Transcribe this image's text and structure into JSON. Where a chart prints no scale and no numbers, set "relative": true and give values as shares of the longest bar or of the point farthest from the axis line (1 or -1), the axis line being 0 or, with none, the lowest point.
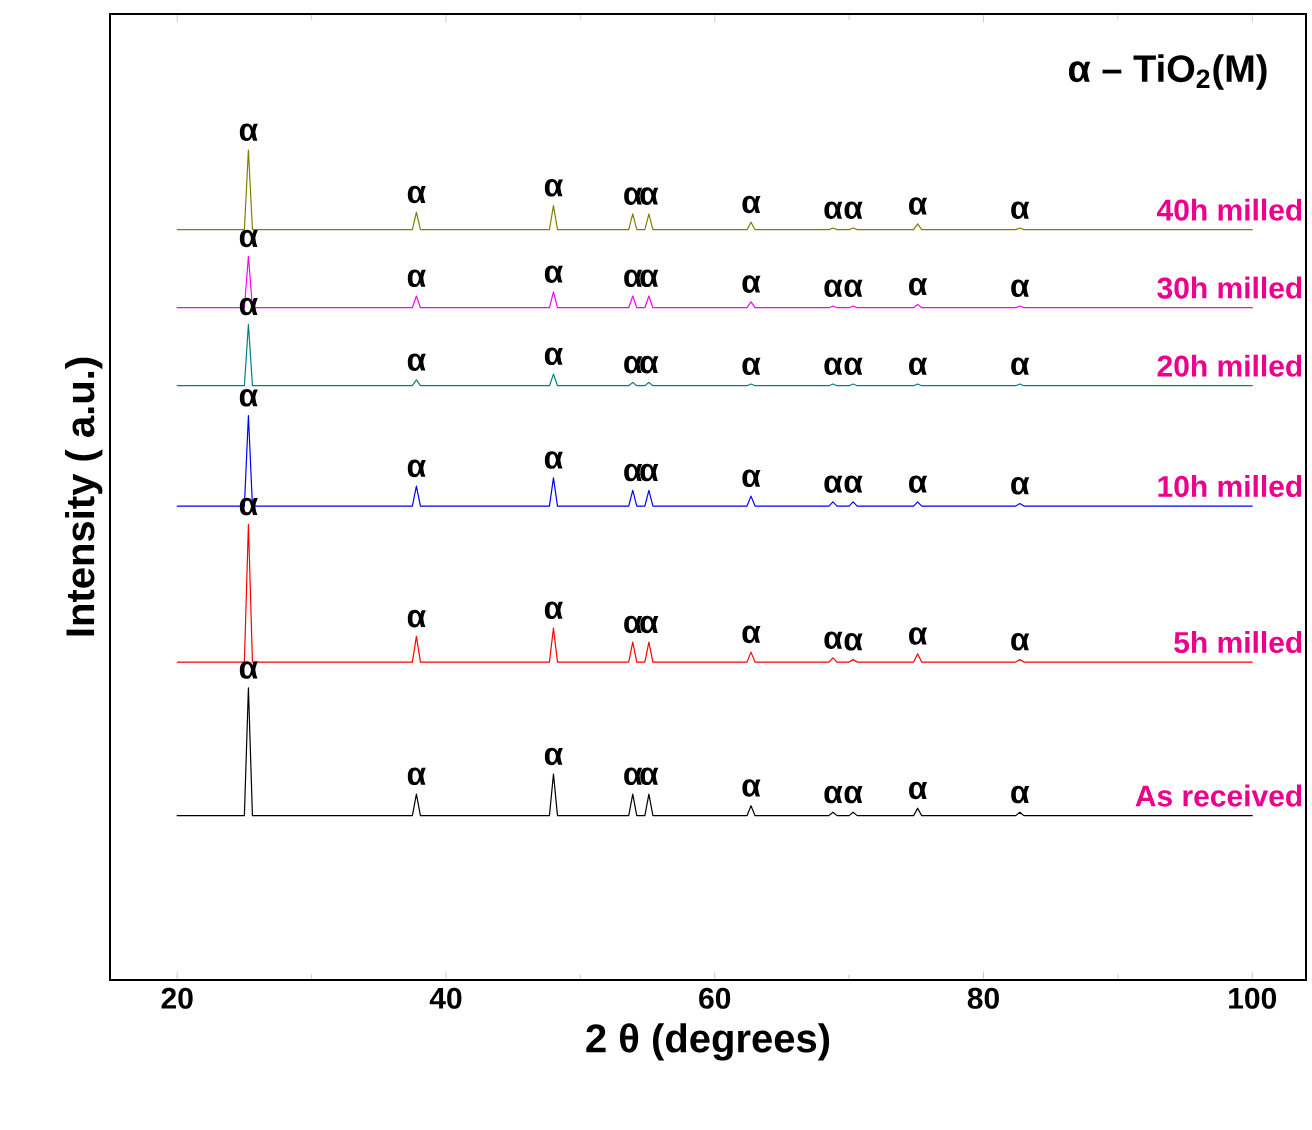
{
  "chart_data": {
    "type": "line",
    "relative": true,
    "xlabel": "2 θ (degrees)",
    "ylabel": "Intensity ( a.u.)",
    "xlim": [
      15,
      104
    ],
    "xticks": [
      20,
      40,
      60,
      80,
      100
    ],
    "tick_labels": "x",
    "x": [
      20,
      25.0,
      25.3,
      25.6,
      37.5,
      37.8,
      38.1,
      47.7,
      48.0,
      48.3,
      53.6,
      53.9,
      54.2,
      54.8,
      55.1,
      55.4,
      62.4,
      62.7,
      63.0,
      68.5,
      68.8,
      69.1,
      70.0,
      70.3,
      70.6,
      74.8,
      75.1,
      75.4,
      82.4,
      82.7,
      83.0,
      100
    ],
    "series": [
      {
        "name": "As received",
        "color": "#000000",
        "values": [
          0.198,
          0.198,
          0.352,
          0.198,
          0.198,
          0.224,
          0.198,
          0.198,
          0.248,
          0.198,
          0.198,
          0.224,
          0.198,
          0.198,
          0.224,
          0.198,
          0.198,
          0.21,
          0.198,
          0.198,
          0.202,
          0.198,
          0.198,
          0.202,
          0.198,
          0.198,
          0.207,
          0.198,
          0.198,
          0.202,
          0.198,
          0.198
        ]
      },
      {
        "name": "5h milled",
        "color": "#ff0000",
        "values": [
          0.383,
          0.383,
          0.549,
          0.383,
          0.383,
          0.414,
          0.383,
          0.383,
          0.424,
          0.383,
          0.383,
          0.407,
          0.383,
          0.383,
          0.407,
          0.383,
          0.383,
          0.395,
          0.383,
          0.383,
          0.388,
          0.383,
          0.383,
          0.386,
          0.383,
          0.383,
          0.393,
          0.383,
          0.383,
          0.386,
          0.383,
          0.383
        ]
      },
      {
        "name": "10h milled",
        "color": "#0000ff",
        "values": [
          0.571,
          0.571,
          0.68,
          0.571,
          0.571,
          0.595,
          0.571,
          0.571,
          0.605,
          0.571,
          0.571,
          0.59,
          0.571,
          0.571,
          0.59,
          0.571,
          0.571,
          0.583,
          0.571,
          0.571,
          0.576,
          0.571,
          0.571,
          0.576,
          0.571,
          0.571,
          0.576,
          0.571,
          0.571,
          0.574,
          0.571,
          0.571
        ]
      },
      {
        "name": "20h milled",
        "color": "#008080",
        "values": [
          0.716,
          0.716,
          0.79,
          0.716,
          0.716,
          0.723,
          0.716,
          0.716,
          0.73,
          0.716,
          0.716,
          0.72,
          0.716,
          0.716,
          0.72,
          0.716,
          0.716,
          0.718,
          0.716,
          0.716,
          0.718,
          0.716,
          0.716,
          0.718,
          0.716,
          0.716,
          0.718,
          0.716,
          0.716,
          0.718,
          0.716,
          0.716
        ]
      },
      {
        "name": "30h milled",
        "color": "#ff00ff",
        "values": [
          0.81,
          0.81,
          0.872,
          0.81,
          0.81,
          0.824,
          0.81,
          0.81,
          0.829,
          0.81,
          0.81,
          0.824,
          0.81,
          0.81,
          0.824,
          0.81,
          0.81,
          0.817,
          0.81,
          0.81,
          0.812,
          0.81,
          0.81,
          0.812,
          0.81,
          0.81,
          0.814,
          0.81,
          0.81,
          0.812,
          0.81,
          0.81
        ]
      },
      {
        "name": "40h milled",
        "color": "#808000",
        "values": [
          0.904,
          0.904,
          1.0,
          0.904,
          0.904,
          0.925,
          0.904,
          0.904,
          0.933,
          0.904,
          0.904,
          0.923,
          0.904,
          0.904,
          0.923,
          0.904,
          0.904,
          0.913,
          0.904,
          0.904,
          0.906,
          0.904,
          0.904,
          0.906,
          0.904,
          0.904,
          0.911,
          0.904,
          0.904,
          0.906,
          0.904,
          0.904
        ]
      }
    ],
    "annotations": [
      "α – TiO$_{2}$(M)",
      {
        "text": "α",
        "x": 25.3,
        "y": 0.352
      },
      {
        "text": "α",
        "x": 37.8,
        "y": 0.224
      },
      {
        "text": "α",
        "x": 48.0,
        "y": 0.248
      },
      {
        "text": "α",
        "x": 53.9,
        "y": 0.224
      },
      {
        "text": "α",
        "x": 55.1,
        "y": 0.224
      },
      {
        "text": "α",
        "x": 62.7,
        "y": 0.21
      },
      {
        "text": "α",
        "x": 68.8,
        "y": 0.202
      },
      {
        "text": "α",
        "x": 70.3,
        "y": 0.202
      },
      {
        "text": "α",
        "x": 75.1,
        "y": 0.207
      },
      {
        "text": "α",
        "x": 82.7,
        "y": 0.202
      },
      {
        "text": "α",
        "x": 25.3,
        "y": 0.549
      },
      {
        "text": "α",
        "x": 37.8,
        "y": 0.414
      },
      {
        "text": "α",
        "x": 48.0,
        "y": 0.424
      },
      {
        "text": "α",
        "x": 53.9,
        "y": 0.407
      },
      {
        "text": "α",
        "x": 55.1,
        "y": 0.407
      },
      {
        "text": "α",
        "x": 62.7,
        "y": 0.395
      },
      {
        "text": "α",
        "x": 68.8,
        "y": 0.388
      },
      {
        "text": "α",
        "x": 70.3,
        "y": 0.386
      },
      {
        "text": "α",
        "x": 75.1,
        "y": 0.393
      },
      {
        "text": "α",
        "x": 82.7,
        "y": 0.386
      },
      {
        "text": "α",
        "x": 25.3,
        "y": 0.68
      },
      {
        "text": "α",
        "x": 37.8,
        "y": 0.595
      },
      {
        "text": "α",
        "x": 48.0,
        "y": 0.605
      },
      {
        "text": "α",
        "x": 53.9,
        "y": 0.59
      },
      {
        "text": "α",
        "x": 55.1,
        "y": 0.59
      },
      {
        "text": "α",
        "x": 62.7,
        "y": 0.583
      },
      {
        "text": "α",
        "x": 68.8,
        "y": 0.576
      },
      {
        "text": "α",
        "x": 70.3,
        "y": 0.576
      },
      {
        "text": "α",
        "x": 75.1,
        "y": 0.576
      },
      {
        "text": "α",
        "x": 82.7,
        "y": 0.574
      },
      {
        "text": "α",
        "x": 25.3,
        "y": 0.79
      },
      {
        "text": "α",
        "x": 37.8,
        "y": 0.723
      },
      {
        "text": "α",
        "x": 48.0,
        "y": 0.73
      },
      {
        "text": "α",
        "x": 53.9,
        "y": 0.72
      },
      {
        "text": "α",
        "x": 55.1,
        "y": 0.72
      },
      {
        "text": "α",
        "x": 62.7,
        "y": 0.718
      },
      {
        "text": "α",
        "x": 68.8,
        "y": 0.718
      },
      {
        "text": "α",
        "x": 70.3,
        "y": 0.718
      },
      {
        "text": "α",
        "x": 75.1,
        "y": 0.718
      },
      {
        "text": "α",
        "x": 82.7,
        "y": 0.718
      },
      {
        "text": "α",
        "x": 25.3,
        "y": 0.872
      },
      {
        "text": "α",
        "x": 37.8,
        "y": 0.824
      },
      {
        "text": "α",
        "x": 48.0,
        "y": 0.829
      },
      {
        "text": "α",
        "x": 53.9,
        "y": 0.824
      },
      {
        "text": "α",
        "x": 55.1,
        "y": 0.824
      },
      {
        "text": "α",
        "x": 62.7,
        "y": 0.817
      },
      {
        "text": "α",
        "x": 68.8,
        "y": 0.812
      },
      {
        "text": "α",
        "x": 70.3,
        "y": 0.812
      },
      {
        "text": "α",
        "x": 75.1,
        "y": 0.814
      },
      {
        "text": "α",
        "x": 82.7,
        "y": 0.812
      },
      {
        "text": "α",
        "x": 25.3,
        "y": 1.0
      },
      {
        "text": "α",
        "x": 37.8,
        "y": 0.925
      },
      {
        "text": "α",
        "x": 48.0,
        "y": 0.933
      },
      {
        "text": "α",
        "x": 53.9,
        "y": 0.923
      },
      {
        "text": "α",
        "x": 55.1,
        "y": 0.923
      },
      {
        "text": "α",
        "x": 62.7,
        "y": 0.913
      },
      {
        "text": "α",
        "x": 68.8,
        "y": 0.906
      },
      {
        "text": "α",
        "x": 70.3,
        "y": 0.906
      },
      {
        "text": "α",
        "x": 75.1,
        "y": 0.911
      },
      {
        "text": "α",
        "x": 82.7,
        "y": 0.906
      }
    ]
  }
}
